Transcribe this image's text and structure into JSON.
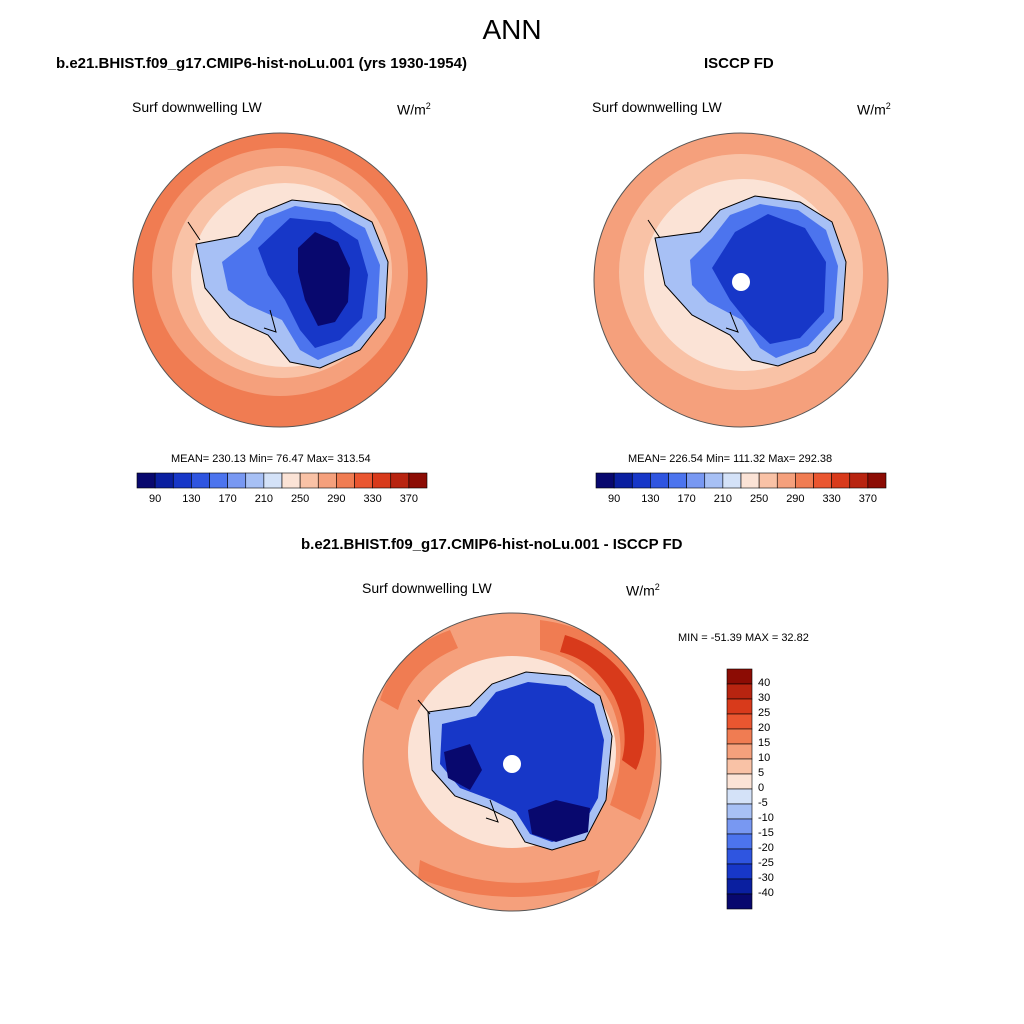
{
  "season": "ANN",
  "panels": [
    {
      "title": "b.e21.BHIST.f09_g17.CMIP6-hist-noLu.001 (yrs 1930-1954)",
      "variable": "Surf downwelling LW",
      "units_base": "W/m",
      "units_exp": "2",
      "stats": "MEAN= 230.13  Min=  76.47  Max= 313.54",
      "colorbar_ticks": [
        "90",
        "130",
        "170",
        "210",
        "250",
        "290",
        "330",
        "370"
      ]
    },
    {
      "title": "ISCCP FD",
      "variable": "Surf downwelling LW",
      "units_base": "W/m",
      "units_exp": "2",
      "stats": "MEAN= 226.54  Min= 111.32  Max= 292.38",
      "colorbar_ticks": [
        "90",
        "130",
        "170",
        "210",
        "250",
        "290",
        "330",
        "370"
      ]
    },
    {
      "title": "b.e21.BHIST.f09_g17.CMIP6-hist-noLu.001 - ISCCP FD",
      "variable": "Surf downwelling LW",
      "units_base": "W/m",
      "units_exp": "2",
      "stats": "MIN = -51.39 MAX =  32.82",
      "colorbar_ticks": [
        "40",
        "30",
        "25",
        "20",
        "15",
        "10",
        "5",
        "0",
        "-5",
        "-10",
        "-15",
        "-20",
        "-25",
        "-30",
        "-40"
      ]
    }
  ],
  "colors": {
    "abs_scale": [
      "#08086e",
      "#0a1fa0",
      "#1737c8",
      "#2f55e0",
      "#4c74ee",
      "#7898f2",
      "#a7c0f5",
      "#d4e2f8",
      "#fbe3d6",
      "#f9c2a6",
      "#f5a07c",
      "#f07c52",
      "#ea5630",
      "#d83a1b",
      "#b82410",
      "#8c0c04"
    ],
    "diff_scale": [
      "#08086e",
      "#0a1fa0",
      "#1737c8",
      "#2f55e0",
      "#4c74ee",
      "#7898f2",
      "#a7c0f5",
      "#d4e2f8",
      "#fbe3d6",
      "#f9c2a6",
      "#f5a07c",
      "#f07c52",
      "#ea5630",
      "#d83a1b",
      "#b82410",
      "#8c0c04"
    ],
    "ocean_outer": "#f07c52",
    "ocean_mid": "#f5a07c",
    "ocean_inner": "#f9c2a6",
    "ice_edge": "#fbe3d6",
    "land_edge": "#a7c0f5",
    "land_mid": "#4c74ee",
    "land_core": "#1737c8",
    "land_deep": "#08086e"
  }
}
